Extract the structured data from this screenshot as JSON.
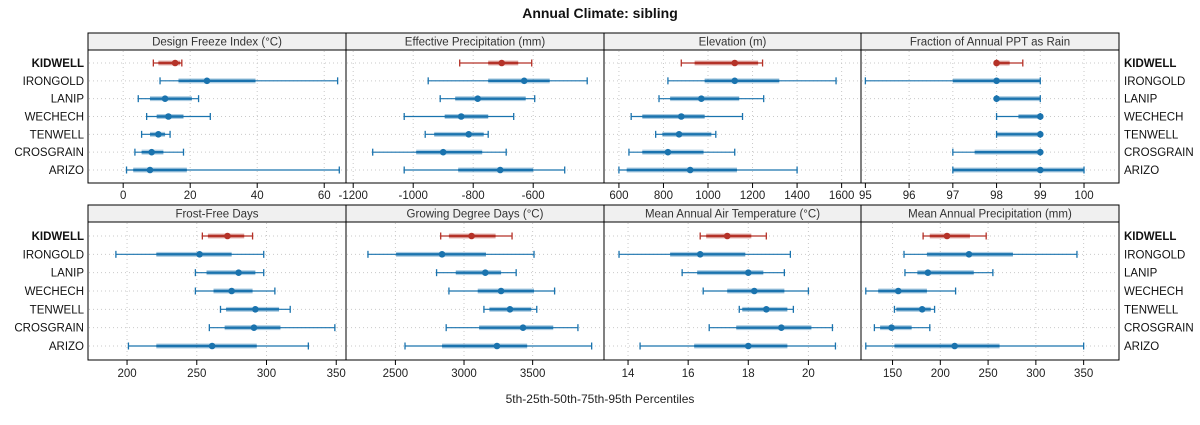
{
  "title": "Annual Climate: sibling",
  "caption": "5th-25th-50th-75th-95th Percentiles",
  "percentile_labels": [
    "5th",
    "25th",
    "50th",
    "75th",
    "95th"
  ],
  "sites": [
    "KIDWELL",
    "IRONGOLD",
    "LANIP",
    "WECHECH",
    "TENWELL",
    "CROSGRAIN",
    "ARIZO"
  ],
  "highlight_site": "KIDWELL",
  "colors": {
    "highlight": "#b53228",
    "normal": "#1a73ae",
    "panel_header_bg": "#f0f0f0",
    "panel_border": "#000000",
    "grid": "#c9c9c9",
    "text": "#222222",
    "header_text": "#333333"
  },
  "chart_data": {
    "type": "dot-interval (5th-25th-50th-75th-95th percentile bars)",
    "layout": {
      "rows": 2,
      "cols": 4,
      "grid": "dotted",
      "legend": "none"
    },
    "panels": [
      {
        "title": "Design Freeze Index (°C)",
        "xlim": [
          -10.5,
          66.5
        ],
        "ticks": [
          0,
          20,
          40,
          60
        ],
        "percentiles": [
          [
            9,
            10.5,
            15.5,
            17,
            17.5
          ],
          [
            11,
            16.5,
            25,
            39.5,
            64
          ],
          [
            4.5,
            8,
            12.5,
            20.5,
            22.5
          ],
          [
            7,
            10,
            13.5,
            18,
            26
          ],
          [
            5.5,
            8,
            10.5,
            12.5,
            14
          ],
          [
            3.5,
            5.5,
            8.5,
            12,
            18
          ],
          [
            1,
            3,
            8,
            19,
            64.5
          ]
        ]
      },
      {
        "title": "Effective Precipitation (mm)",
        "xlim": [
          -1224,
          -364
        ],
        "ticks": [
          -1200,
          -1000,
          -800,
          -600
        ],
        "percentiles": [
          [
            -845,
            -750,
            -705,
            -650,
            -605
          ],
          [
            -950,
            -750,
            -630,
            -545,
            -420
          ],
          [
            -910,
            -860,
            -785,
            -625,
            -595
          ],
          [
            -1030,
            -895,
            -840,
            -750,
            -665
          ],
          [
            -960,
            -930,
            -815,
            -765,
            -750
          ],
          [
            -1135,
            -990,
            -900,
            -770,
            -690
          ],
          [
            -1030,
            -850,
            -710,
            -600,
            -495
          ]
        ]
      },
      {
        "title": "Elevation (m)",
        "xlim": [
          533,
          1687
        ],
        "ticks": [
          600,
          800,
          1000,
          1200,
          1400,
          1600
        ],
        "percentiles": [
          [
            880,
            940,
            1120,
            1225,
            1245
          ],
          [
            820,
            985,
            1120,
            1320,
            1575
          ],
          [
            780,
            830,
            970,
            1140,
            1250
          ],
          [
            655,
            705,
            880,
            985,
            1155
          ],
          [
            765,
            795,
            870,
            1015,
            1035
          ],
          [
            645,
            705,
            820,
            980,
            1120
          ],
          [
            600,
            635,
            920,
            1130,
            1400
          ]
        ]
      },
      {
        "title": "Fraction of Annual PPT as Rain",
        "xlim": [
          94.9,
          100.8
        ],
        "ticks": [
          95,
          96,
          97,
          98,
          99,
          100
        ],
        "percentiles": [
          [
            98,
            98,
            98,
            98.3,
            98.6
          ],
          [
            95,
            97,
            98,
            99,
            99
          ],
          [
            98,
            98,
            98,
            99,
            99
          ],
          [
            98,
            98.5,
            99,
            99,
            99
          ],
          [
            98,
            98,
            99,
            99,
            99
          ],
          [
            97,
            97.5,
            99,
            99,
            99
          ],
          [
            97,
            97,
            99,
            100,
            100
          ]
        ]
      },
      {
        "title": "Frost-Free Days",
        "xlim": [
          172,
          357
        ],
        "ticks": [
          200,
          250,
          300,
          350
        ],
        "percentiles": [
          [
            254,
            258,
            272,
            284,
            290
          ],
          [
            192,
            221,
            252,
            275,
            298
          ],
          [
            249,
            257,
            280,
            292,
            298
          ],
          [
            249,
            262,
            275,
            290,
            306
          ],
          [
            267,
            271,
            292,
            309,
            317
          ],
          [
            259,
            270,
            291,
            310,
            349
          ],
          [
            201,
            221,
            261,
            293,
            330
          ]
        ]
      },
      {
        "title": "Growing Degree Days (°C)",
        "xlim": [
          2140,
          4020
        ],
        "ticks": [
          2500,
          3000,
          3500
        ],
        "percentiles": [
          [
            2830,
            2890,
            3055,
            3230,
            3350
          ],
          [
            2300,
            2505,
            2840,
            3160,
            3510
          ],
          [
            2800,
            2940,
            3155,
            3270,
            3380
          ],
          [
            2890,
            3100,
            3270,
            3510,
            3660
          ],
          [
            3145,
            3185,
            3335,
            3490,
            3530
          ],
          [
            2870,
            3110,
            3430,
            3650,
            3830
          ],
          [
            2570,
            2840,
            3240,
            3460,
            3930
          ]
        ]
      },
      {
        "title": "Mean Annual Air Temperature (°C)",
        "xlim": [
          13.2,
          21.75
        ],
        "ticks": [
          14,
          16,
          18,
          20
        ],
        "percentiles": [
          [
            16.4,
            16.6,
            17.3,
            18.1,
            18.6
          ],
          [
            13.7,
            15.4,
            16.4,
            17.9,
            19.4
          ],
          [
            15.8,
            16.3,
            18,
            18.5,
            19.2
          ],
          [
            16.5,
            17.3,
            18.2,
            19.2,
            20
          ],
          [
            17.7,
            17.8,
            18.6,
            19.3,
            19.5
          ],
          [
            16.7,
            17.6,
            19.1,
            20.1,
            20.8
          ],
          [
            14.4,
            16.2,
            18,
            19.3,
            20.9
          ]
        ]
      },
      {
        "title": "Mean Annual Precipitation (mm)",
        "xlim": [
          117,
          387
        ],
        "ticks": [
          150,
          200,
          250,
          300,
          350
        ],
        "percentiles": [
          [
            182,
            189,
            207,
            231,
            248
          ],
          [
            162,
            186,
            230,
            276,
            343
          ],
          [
            163,
            176,
            187,
            235,
            255
          ],
          [
            122,
            135,
            156,
            186,
            216
          ],
          [
            152,
            154,
            181,
            190,
            194
          ],
          [
            131,
            137,
            149,
            170,
            189
          ],
          [
            122,
            152,
            215,
            262,
            350
          ]
        ]
      }
    ]
  }
}
